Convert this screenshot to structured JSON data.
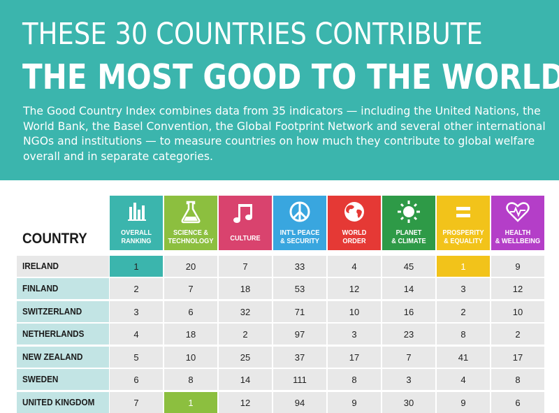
{
  "header": {
    "title_line1": "THESE 30 COUNTRIES CONTRIBUTE",
    "title_line2": "THE MOST GOOD TO THE WORLD",
    "description": "The Good Country Index combines data from 35 indicators — including the United Nations, the World Bank, the Basel Convention, the Global Footprint Network and several other international NGOs and institutions — to measure countries on how much they contribute to global welfare overall and in separate categories."
  },
  "table": {
    "country_header": "COUNTRY",
    "columns": [
      {
        "line1": "OVERALL",
        "line2": "RANKING",
        "color": "#3bb5ad",
        "icon": "bar-chart-icon"
      },
      {
        "line1": "SCIENCE &",
        "line2": "TECHNOLOGY",
        "color": "#8cbf3f",
        "icon": "flask-icon"
      },
      {
        "line1": "CULTURE",
        "line2": "",
        "color": "#d9436e",
        "icon": "music-note-icon"
      },
      {
        "line1": "INT'L PEACE",
        "line2": "& SECURITY",
        "color": "#39a6df",
        "icon": "peace-icon"
      },
      {
        "line1": "WORLD",
        "line2": "ORDER",
        "color": "#e53935",
        "icon": "globe-icon"
      },
      {
        "line1": "PLANET",
        "line2": "& CLIMATE",
        "color": "#2e9a47",
        "icon": "sun-icon"
      },
      {
        "line1": "PROSPERITY",
        "line2": "& EQUALITY",
        "color": "#f2c31a",
        "icon": "equals-icon"
      },
      {
        "line1": "HEALTH",
        "line2": "& WELLBEING",
        "color": "#b43ec8",
        "icon": "heart-icon"
      }
    ],
    "rows": [
      {
        "country": "IRELAND",
        "values": [
          "1",
          "20",
          "7",
          "33",
          "4",
          "45",
          "1",
          "9"
        ]
      },
      {
        "country": "FINLAND",
        "values": [
          "2",
          "7",
          "18",
          "53",
          "12",
          "14",
          "3",
          "12"
        ]
      },
      {
        "country": "SWITZERLAND",
        "values": [
          "3",
          "6",
          "32",
          "71",
          "10",
          "16",
          "2",
          "10"
        ]
      },
      {
        "country": "NETHERLANDS",
        "values": [
          "4",
          "18",
          "2",
          "97",
          "3",
          "23",
          "8",
          "2"
        ]
      },
      {
        "country": "NEW ZEALAND",
        "values": [
          "5",
          "10",
          "25",
          "37",
          "17",
          "7",
          "41",
          "17"
        ]
      },
      {
        "country": "SWEDEN",
        "values": [
          "6",
          "8",
          "14",
          "111",
          "8",
          "3",
          "4",
          "8"
        ]
      },
      {
        "country": "UNITED KINGDOM",
        "values": [
          "7",
          "1",
          "12",
          "94",
          "9",
          "30",
          "9",
          "6"
        ]
      }
    ]
  },
  "highlights": {
    "ireland_overall": "#3bb5ad",
    "ireland_prosperity": "#f2c31a",
    "uk_science": "#8cbf3f"
  }
}
